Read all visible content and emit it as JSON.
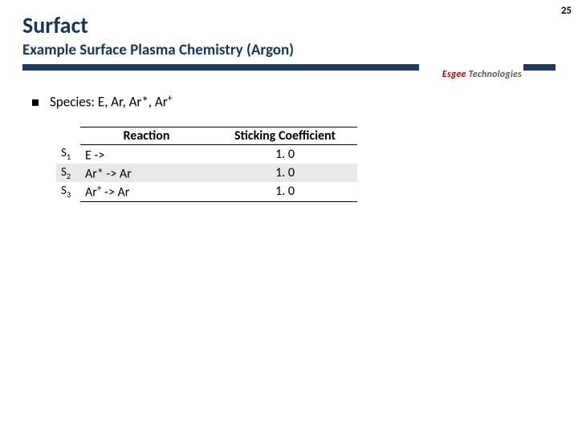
{
  "page_number": "25",
  "title": "Surfact",
  "subtitle": "Example Surface Plasma Chemistry (Argon)",
  "logo": {
    "first": "Esgee",
    "second": " Technologies"
  },
  "species_label": "Species: E, Ar, Ar*, Ar",
  "species_sup": "+",
  "table": {
    "headers": {
      "reaction": "Reaction",
      "sticking": "Sticking Coefficient"
    },
    "rows": [
      {
        "id_base": "S",
        "id_sub": "1",
        "reaction_pre": "E ->",
        "reaction_sup": "",
        "reaction_post": "",
        "sticking": "1. 0"
      },
      {
        "id_base": "S",
        "id_sub": "2",
        "reaction_pre": "Ar* -> Ar",
        "reaction_sup": "",
        "reaction_post": "",
        "sticking": "1. 0"
      },
      {
        "id_base": "S",
        "id_sub": "3",
        "reaction_pre": "Ar",
        "reaction_sup": "+",
        "reaction_post": " -> Ar",
        "sticking": "1. 0"
      }
    ]
  }
}
